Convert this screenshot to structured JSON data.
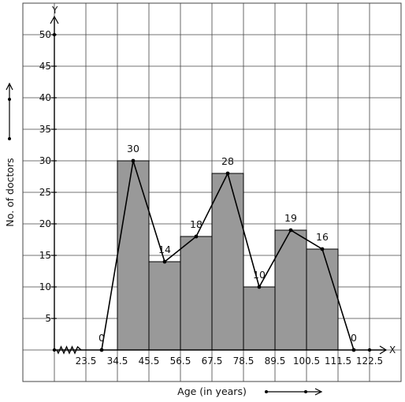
{
  "chart_data": {
    "type": "bar",
    "subtype": "histogram-with-frequency-polygon",
    "xlabel": "Age (in years)",
    "ylabel": "No. of doctors",
    "x_axis_letter": "X",
    "y_axis_letter": "Y",
    "x_tick_labels": [
      "23.5",
      "34.5",
      "45.5",
      "56.5",
      "67.5",
      "78.5",
      "89.5",
      "100.5",
      "111.5",
      "122.5"
    ],
    "y_tick_labels": [
      "5",
      "10",
      "15",
      "20",
      "25",
      "30",
      "35",
      "40",
      "45",
      "50"
    ],
    "ylim": [
      0,
      50
    ],
    "grid": true,
    "bars": [
      {
        "from": 34.5,
        "to": 45.5,
        "value": 30
      },
      {
        "from": 45.5,
        "to": 56.5,
        "value": 14
      },
      {
        "from": 56.5,
        "to": 67.5,
        "value": 18
      },
      {
        "from": 67.5,
        "to": 78.5,
        "value": 28
      },
      {
        "from": 78.5,
        "to": 89.5,
        "value": 10
      },
      {
        "from": 89.5,
        "to": 100.5,
        "value": 19
      },
      {
        "from": 100.5,
        "to": 111.5,
        "value": 16
      }
    ],
    "polygon": {
      "x": [
        29,
        40,
        51,
        62,
        73,
        84,
        95,
        106,
        117
      ],
      "y": [
        0,
        30,
        14,
        18,
        28,
        10,
        19,
        16,
        0
      ],
      "labels": [
        "0",
        "30",
        "14",
        "18",
        "28",
        "10",
        "19",
        "16",
        "0"
      ]
    },
    "colors": {
      "bar_fill": "#999999",
      "line": "#000000",
      "grid": "#444444",
      "background": "#ffffff"
    }
  }
}
